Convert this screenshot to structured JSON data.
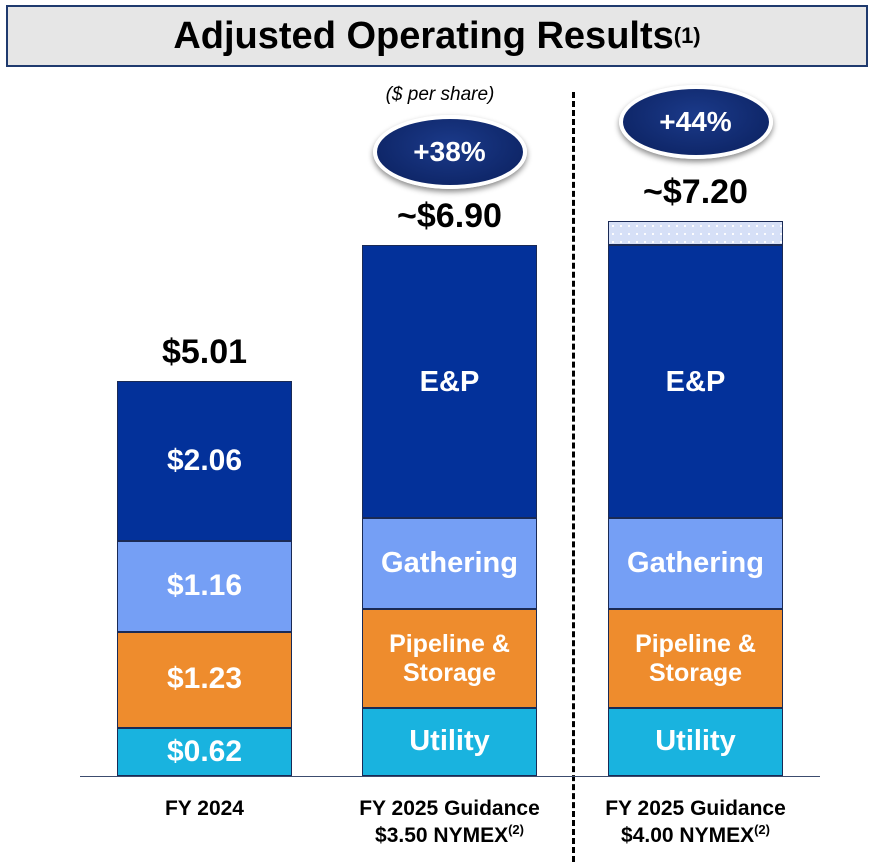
{
  "title": {
    "text": "Adjusted Operating Results",
    "footnote": "(1)"
  },
  "chart_data": {
    "type": "bar",
    "stacked": true,
    "title": "Adjusted Operating Results",
    "subtitle": "($ per share)",
    "ylim": [
      0,
      10
    ],
    "categories": [
      {
        "label": "FY 2024",
        "label2": "",
        "footnote": ""
      },
      {
        "label": "FY 2025 Guidance",
        "label2": "$3.50 NYMEX",
        "footnote": "(2)"
      },
      {
        "label": "FY 2025 Guidance",
        "label2": "$4.00 NYMEX",
        "footnote": "(2)"
      }
    ],
    "series": [
      {
        "name": "Utility",
        "color": "#19b3df",
        "values": [
          0.62,
          0.87,
          0.87
        ],
        "labels": [
          "$0.62",
          "Utility",
          "Utility"
        ]
      },
      {
        "name": "Pipeline & Storage",
        "color": "#ee8c2d",
        "values": [
          1.23,
          1.27,
          1.27
        ],
        "labels": [
          "$1.23",
          "Pipeline & Storage",
          "Pipeline & Storage"
        ]
      },
      {
        "name": "Gathering",
        "color": "#759ff5",
        "values": [
          1.16,
          1.17,
          1.17
        ],
        "labels": [
          "$1.16",
          "Gathering",
          "Gathering"
        ]
      },
      {
        "name": "E&P",
        "color": "#03319a",
        "values": [
          2.06,
          3.5,
          3.5
        ],
        "labels": [
          "$2.06",
          "E&P",
          "E&P"
        ]
      },
      {
        "name": "Upside",
        "color": "#d6e0f7",
        "values": [
          0,
          0,
          0.31
        ],
        "labels": [
          "",
          "",
          ""
        ]
      }
    ],
    "totals": [
      "$5.01",
      "~$6.90",
      "~$7.20"
    ],
    "badges": [
      "",
      "+38%",
      "+44%"
    ]
  }
}
